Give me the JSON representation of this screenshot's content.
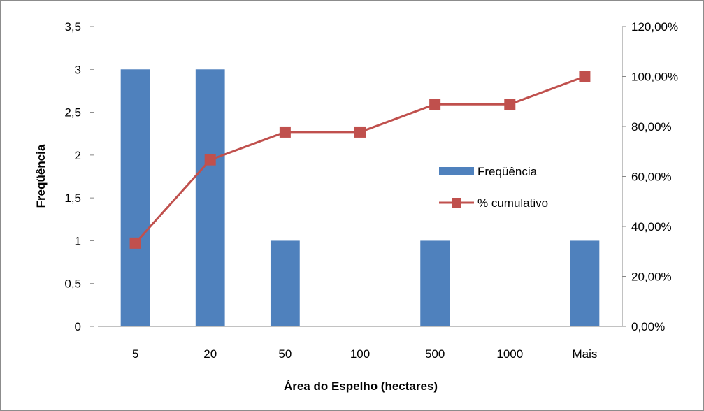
{
  "chart_data": {
    "type": "bar",
    "categories": [
      "5",
      "20",
      "50",
      "100",
      "500",
      "1000",
      "Mais"
    ],
    "series": [
      {
        "name": "Freqüência",
        "type": "bar",
        "axis": "left",
        "values": [
          3,
          3,
          1,
          0,
          1,
          0,
          1
        ],
        "color": "#4f81bd"
      },
      {
        "name": "% cumulativo",
        "type": "line",
        "axis": "right",
        "marker": "square",
        "values": [
          33.33,
          66.67,
          77.78,
          77.78,
          88.89,
          88.89,
          100.0
        ],
        "color": "#c0504d"
      }
    ],
    "xlabel": "Área do Espelho (hectares)",
    "ylabel": "Freqüência",
    "ylim": [
      0,
      3.5
    ],
    "y_ticks": [
      "0",
      "0,5",
      "1",
      "1,5",
      "2",
      "2,5",
      "3",
      "3,5"
    ],
    "y2lim": [
      0,
      120
    ],
    "y2_ticks": [
      "0,00%",
      "20,00%",
      "40,00%",
      "60,00%",
      "80,00%",
      "100,00%",
      "120,00%"
    ],
    "legend": "inside right",
    "grid": false
  }
}
